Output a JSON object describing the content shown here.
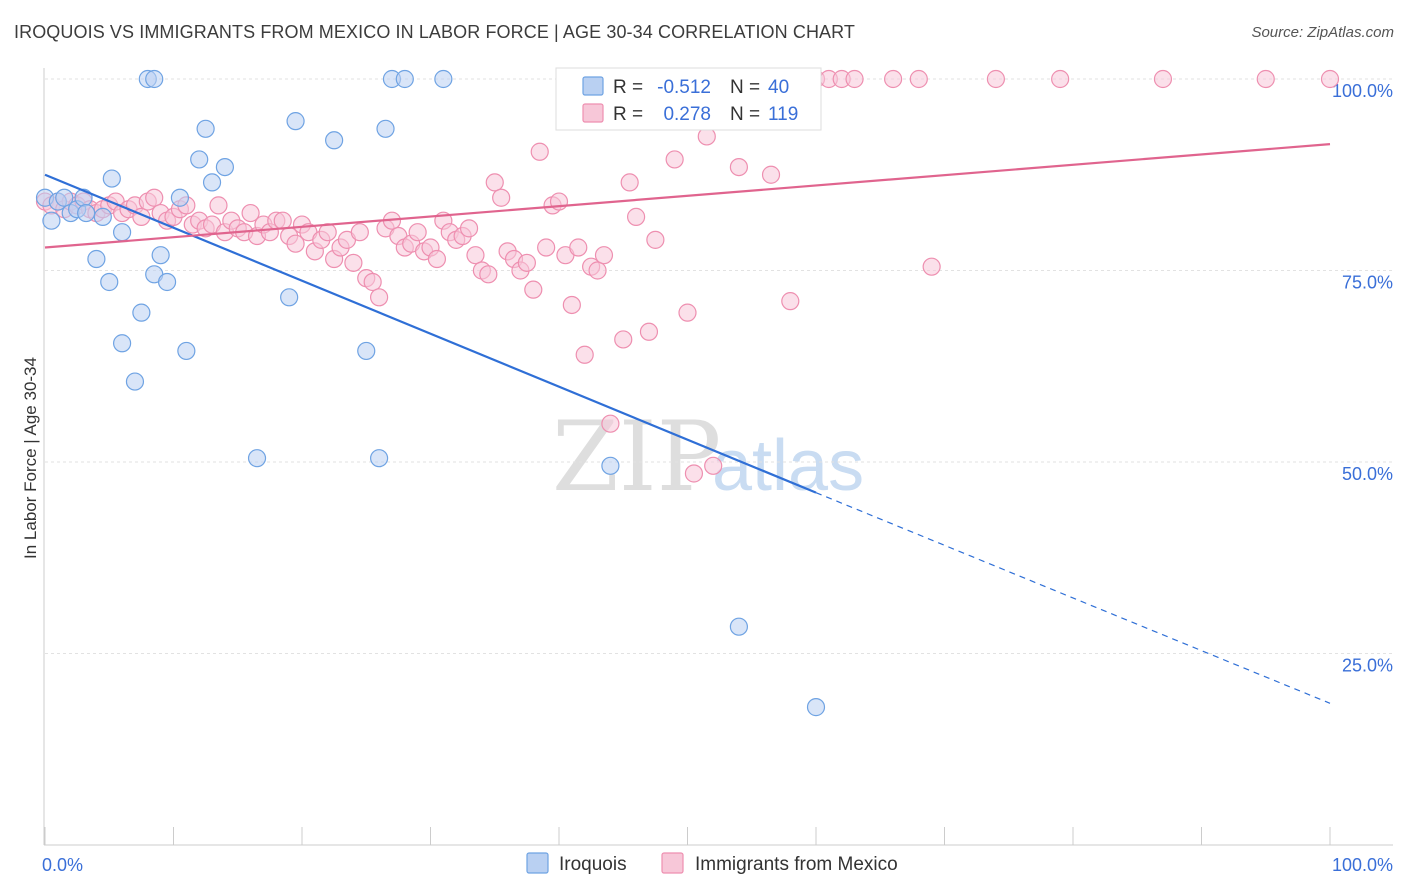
{
  "title": "IROQUOIS VS IMMIGRANTS FROM MEXICO IN LABOR FORCE | AGE 30-34 CORRELATION CHART",
  "source": "Source: ZipAtlas.com",
  "watermark": {
    "zip": "ZIP",
    "atlas": "atlas"
  },
  "colors": {
    "iroquois": "#6fa3e3",
    "iroquois_fill": "#b9d0f2",
    "mexico": "#ee8fb0",
    "mexico_fill": "#f7c7d8",
    "trend_iroquois": "#2f6fd6",
    "trend_mexico": "#e0648e",
    "tick_text": "#3a6fd8"
  },
  "legend_top": {
    "rows": [
      {
        "r_label": "R =",
        "r_value": "-0.512",
        "n_label": "N =",
        "n_value": "40"
      },
      {
        "r_label": "R =",
        "r_value": "0.278",
        "n_label": "N =",
        "n_value": "119"
      }
    ]
  },
  "legend_bottom": {
    "items": [
      "Iroquois",
      "Immigrants from Mexico"
    ]
  },
  "chart_data": {
    "type": "scatter",
    "title": "IROQUOIS VS IMMIGRANTS FROM MEXICO IN LABOR FORCE | AGE 30-34 CORRELATION CHART",
    "xlabel": "",
    "ylabel": "In Labor Force | Age 30-34",
    "xlim": [
      0,
      100
    ],
    "ylim": [
      0,
      105
    ],
    "x_tick_labels": [
      "0.0%",
      "100.0%"
    ],
    "y_ticks": [
      25,
      50,
      75,
      100
    ],
    "y_tick_labels": [
      "25.0%",
      "50.0%",
      "75.0%",
      "100.0%"
    ],
    "grid": true,
    "legend_position": "bottom",
    "series": [
      {
        "name": "Iroquois",
        "R": -0.512,
        "N": 40,
        "trend": {
          "x0": 0,
          "y0": 87.5,
          "x1": 60,
          "y1": 46,
          "dashed_to_x": 100,
          "dashed_to_y": 18.5
        },
        "points": [
          [
            0,
            84.5
          ],
          [
            0.5,
            81.5
          ],
          [
            1,
            84
          ],
          [
            1.5,
            84.5
          ],
          [
            2,
            82.5
          ],
          [
            2.5,
            83
          ],
          [
            3,
            84.5
          ],
          [
            3.2,
            82.5
          ],
          [
            4,
            76.5
          ],
          [
            4.5,
            82
          ],
          [
            5,
            73.5
          ],
          [
            5.2,
            87
          ],
          [
            6,
            80
          ],
          [
            6,
            65.5
          ],
          [
            7,
            60.5
          ],
          [
            7.5,
            69.5
          ],
          [
            8,
            100
          ],
          [
            8.5,
            100
          ],
          [
            8.5,
            74.5
          ],
          [
            9,
            77
          ],
          [
            9.5,
            73.5
          ],
          [
            10.5,
            84.5
          ],
          [
            11,
            64.5
          ],
          [
            12,
            89.5
          ],
          [
            12.5,
            93.5
          ],
          [
            13,
            86.5
          ],
          [
            14,
            88.5
          ],
          [
            16.5,
            50.5
          ],
          [
            19,
            71.5
          ],
          [
            19.5,
            94.5
          ],
          [
            22.5,
            92
          ],
          [
            25,
            64.5
          ],
          [
            26,
            50.5
          ],
          [
            26.5,
            93.5
          ],
          [
            27,
            100
          ],
          [
            28,
            100
          ],
          [
            31,
            100
          ],
          [
            44,
            49.5
          ],
          [
            54,
            28.5
          ],
          [
            60,
            18
          ]
        ]
      },
      {
        "name": "Immigrants from Mexico",
        "R": 0.278,
        "N": 119,
        "trend": {
          "x0": 0,
          "y0": 78,
          "x1": 100,
          "y1": 91.5
        },
        "points": [
          [
            0,
            84
          ],
          [
            0.5,
            83.5
          ],
          [
            1,
            84
          ],
          [
            1.5,
            83
          ],
          [
            2,
            84
          ],
          [
            2.5,
            83.5
          ],
          [
            3,
            84
          ],
          [
            3.5,
            83
          ],
          [
            4,
            82.5
          ],
          [
            4.5,
            83
          ],
          [
            5,
            83.5
          ],
          [
            5.5,
            84
          ],
          [
            6,
            82.5
          ],
          [
            6.5,
            83
          ],
          [
            7,
            83.5
          ],
          [
            7.5,
            82
          ],
          [
            8,
            84
          ],
          [
            8.5,
            84.5
          ],
          [
            9,
            82.5
          ],
          [
            9.5,
            81.5
          ],
          [
            10,
            82
          ],
          [
            10.5,
            83
          ],
          [
            11,
            83.5
          ],
          [
            11.5,
            81
          ],
          [
            12,
            81.5
          ],
          [
            12.5,
            80.5
          ],
          [
            13,
            81
          ],
          [
            13.5,
            83.5
          ],
          [
            14,
            80
          ],
          [
            14.5,
            81.5
          ],
          [
            15,
            80.5
          ],
          [
            15.5,
            80
          ],
          [
            16,
            82.5
          ],
          [
            16.5,
            79.5
          ],
          [
            17,
            81
          ],
          [
            17.5,
            80
          ],
          [
            18,
            81.5
          ],
          [
            18.5,
            81.5
          ],
          [
            19,
            79.5
          ],
          [
            19.5,
            78.5
          ],
          [
            20,
            81
          ],
          [
            20.5,
            80
          ],
          [
            21,
            77.5
          ],
          [
            21.5,
            79
          ],
          [
            22,
            80
          ],
          [
            22.5,
            76.5
          ],
          [
            23,
            78
          ],
          [
            23.5,
            79
          ],
          [
            24,
            76
          ],
          [
            24.5,
            80
          ],
          [
            25,
            74
          ],
          [
            25.5,
            73.5
          ],
          [
            26,
            71.5
          ],
          [
            26.5,
            80.5
          ],
          [
            27,
            81.5
          ],
          [
            27.5,
            79.5
          ],
          [
            28,
            78
          ],
          [
            28.5,
            78.5
          ],
          [
            29,
            80
          ],
          [
            29.5,
            77.5
          ],
          [
            30,
            78
          ],
          [
            30.5,
            76.5
          ],
          [
            31,
            81.5
          ],
          [
            31.5,
            80
          ],
          [
            32,
            79
          ],
          [
            32.5,
            79.5
          ],
          [
            33,
            80.5
          ],
          [
            33.5,
            77
          ],
          [
            34,
            75
          ],
          [
            34.5,
            74.5
          ],
          [
            35,
            86.5
          ],
          [
            35.5,
            84.5
          ],
          [
            36,
            77.5
          ],
          [
            36.5,
            76.5
          ],
          [
            37,
            75
          ],
          [
            37.5,
            76
          ],
          [
            38,
            72.5
          ],
          [
            38.5,
            90.5
          ],
          [
            39,
            78
          ],
          [
            39.5,
            83.5
          ],
          [
            40,
            84
          ],
          [
            40.5,
            77
          ],
          [
            41,
            70.5
          ],
          [
            41.5,
            78
          ],
          [
            42,
            64
          ],
          [
            42.5,
            75.5
          ],
          [
            43,
            75
          ],
          [
            43.5,
            77
          ],
          [
            44,
            55
          ],
          [
            45,
            66
          ],
          [
            45.5,
            86.5
          ],
          [
            46,
            82
          ],
          [
            47,
            67
          ],
          [
            47.5,
            79
          ],
          [
            48,
            100
          ],
          [
            49,
            89.5
          ],
          [
            50,
            69.5
          ],
          [
            50.5,
            48.5
          ],
          [
            51,
            100
          ],
          [
            51.5,
            92.5
          ],
          [
            52,
            49.5
          ],
          [
            53,
            100
          ],
          [
            54,
            88.5
          ],
          [
            55,
            100
          ],
          [
            56.5,
            87.5
          ],
          [
            58,
            71
          ],
          [
            59,
            100
          ],
          [
            60,
            100
          ],
          [
            61,
            100
          ],
          [
            62,
            100
          ],
          [
            63,
            100
          ],
          [
            66,
            100
          ],
          [
            68,
            100
          ],
          [
            69,
            75.5
          ],
          [
            74,
            100
          ],
          [
            79,
            100
          ],
          [
            87,
            100
          ],
          [
            95,
            100
          ],
          [
            100,
            100
          ]
        ]
      }
    ]
  }
}
